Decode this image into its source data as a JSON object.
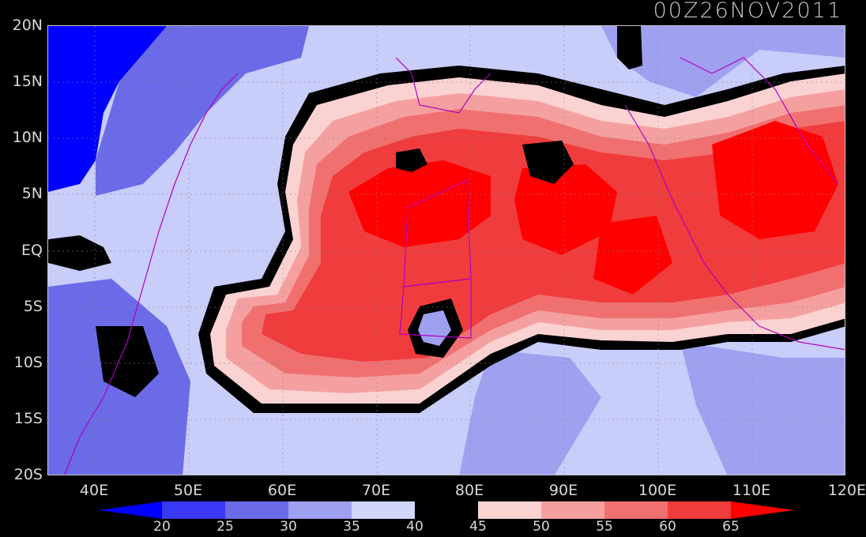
{
  "title": "00Z26NOV2011",
  "lat_labels": [
    "20N",
    "15N",
    "10N",
    "5N",
    "EQ",
    "5S",
    "10S",
    "15S",
    "20S"
  ],
  "lon_labels": [
    "40E",
    "50E",
    "60E",
    "70E",
    "80E",
    "90E",
    "100E",
    "110E",
    "120E"
  ],
  "colorbar": {
    "colors": [
      "#0000ff",
      "#3939f5",
      "#6b6be8",
      "#a0a0f0",
      "#d2d5fa",
      "#000000",
      "#fbd2d2",
      "#f5a0a0",
      "#f07070",
      "#f03c3c",
      "#ff2a2a",
      "#ff0000"
    ],
    "labels": [
      "20",
      "25",
      "30",
      "35",
      "40",
      "45",
      "50",
      "55",
      "60",
      "65"
    ]
  }
}
